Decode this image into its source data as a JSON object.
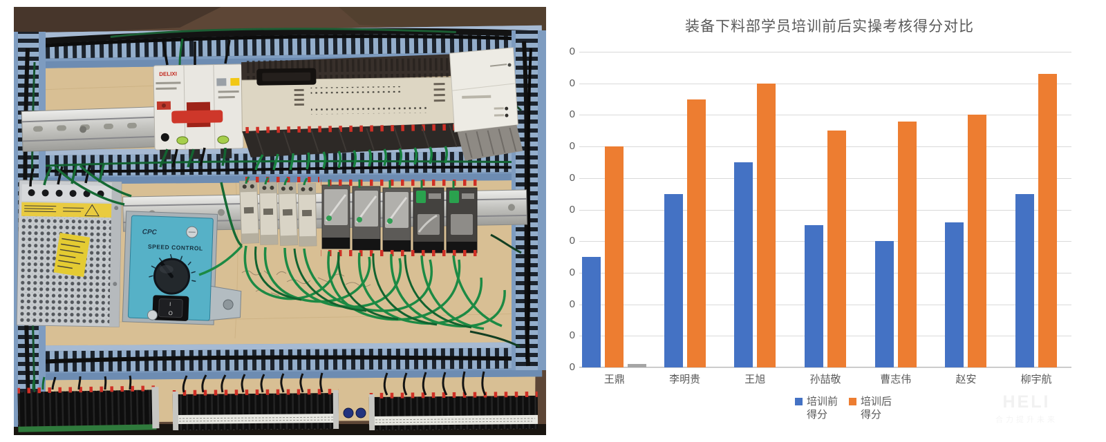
{
  "photo": {
    "description": "electrical-control-cabinet-wiring-photo",
    "labels": {
      "breaker_brand": "DELIXI",
      "controller_brand": "CPC",
      "controller_title": "SPEED CONTROL",
      "switch_on": "I",
      "switch_off": "O"
    }
  },
  "chart_data": {
    "type": "bar",
    "title": "装备下料部学员培训前后实操考核得分对比",
    "categories": [
      "王鼎",
      "李明贵",
      "王旭",
      "孙喆敬",
      "曹志伟",
      "赵安",
      "柳宇航"
    ],
    "series": [
      {
        "name": "培训前得分",
        "legend_lines": "培训前\n得分",
        "color": "#4472C4",
        "values": [
          35,
          55,
          65,
          45,
          40,
          46,
          55
        ]
      },
      {
        "name": "培训后得分",
        "legend_lines": "培训后\n得分",
        "color": "#ED7D31",
        "values": [
          70,
          85,
          90,
          75,
          78,
          80,
          93
        ]
      }
    ],
    "extra_bar": {
      "category": "王鼎",
      "category_index": 0,
      "value": 1,
      "color": "#A5A5A5"
    },
    "xlabel": "",
    "ylabel": "",
    "ylim": [
      0,
      100
    ],
    "ytick_step": 10,
    "ytick_visible_text": "0",
    "grid": true,
    "gridline_color": "#D9D9D9",
    "axis_text_color": "#595959",
    "legend_position": "bottom"
  },
  "watermark": {
    "line1": "HELI",
    "line2": "合力提升未来"
  }
}
